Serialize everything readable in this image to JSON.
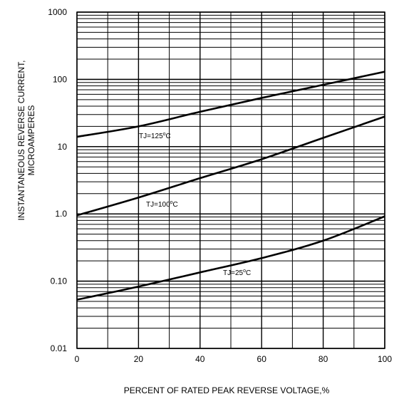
{
  "chart_data": {
    "type": "line",
    "xlabel": "PERCENT OF RATED PEAK REVERSE VOLTAGE,%",
    "ylabel_line1": "INSTANTANEOUS REVERSE CURRENT,",
    "ylabel_line2": "MICROAMPERES",
    "xlim": [
      0,
      100
    ],
    "ylim": [
      0.01,
      1000
    ],
    "yscale": "log",
    "grid": true,
    "x_ticks": [
      0,
      20,
      40,
      60,
      80,
      100
    ],
    "x_tick_labels": [
      "0",
      "20",
      "40",
      "60",
      "80",
      "100"
    ],
    "y_ticks": [
      0.01,
      0.1,
      1,
      10,
      100,
      1000
    ],
    "y_tick_labels": [
      "0.01",
      "0.10",
      "1.0",
      "10",
      "100",
      "1000"
    ],
    "series": [
      {
        "name": "TJ=125°C",
        "label_main": "TJ=125",
        "label_deg": "o",
        "label_unit": "C",
        "x": [
          0,
          20,
          40,
          60,
          80,
          100
        ],
        "y": [
          14,
          20,
          33,
          53,
          83,
          130
        ]
      },
      {
        "name": "TJ=100°C",
        "label_main": "TJ=100",
        "label_deg": "o",
        "label_unit": "C",
        "x": [
          0,
          20,
          40,
          60,
          80,
          100
        ],
        "y": [
          0.95,
          1.75,
          3.4,
          6.5,
          13.5,
          28
        ]
      },
      {
        "name": "TJ=25°C",
        "label_main": "TJ=25",
        "label_deg": "o",
        "label_unit": "C",
        "x": [
          0,
          20,
          40,
          60,
          80,
          100
        ],
        "y": [
          0.053,
          0.083,
          0.135,
          0.22,
          0.4,
          0.92
        ]
      }
    ]
  }
}
